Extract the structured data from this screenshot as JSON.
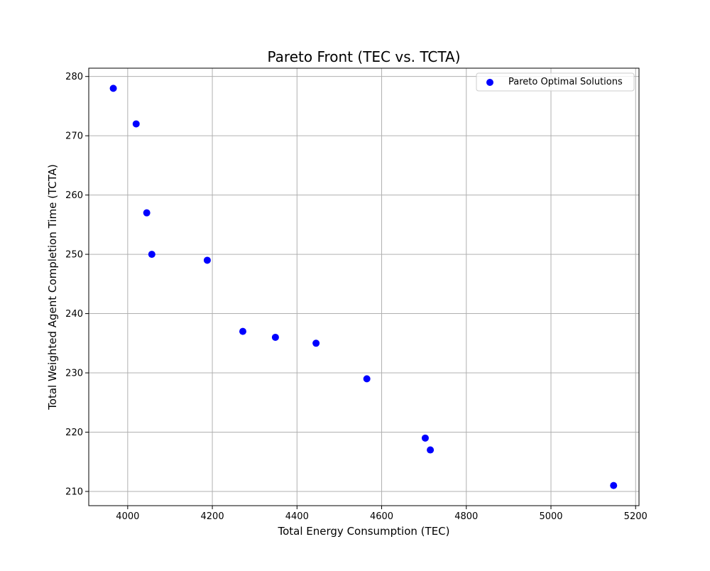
{
  "chart_data": {
    "type": "scatter",
    "title": "Pareto Front (TEC vs. TCTA)",
    "xlabel": "Total Energy Consumption (TEC)",
    "ylabel": "Total Weighted Agent Completion Time (TCTA)",
    "xlim": [
      3908,
      5208
    ],
    "ylim": [
      207.6,
      281.4
    ],
    "xticks": [
      4000,
      4200,
      4400,
      4600,
      4800,
      5000,
      5200
    ],
    "yticks": [
      210,
      220,
      230,
      240,
      250,
      260,
      270,
      280
    ],
    "grid": true,
    "legend_position": "top-right",
    "series": [
      {
        "name": "Pareto Optimal Solutions",
        "color": "#0000ff",
        "x": [
          3966,
          4020,
          4045,
          4057,
          4188,
          4272,
          4349,
          4445,
          4565,
          4703,
          4715,
          5148
        ],
        "y": [
          278,
          272,
          257,
          250,
          249,
          237,
          236,
          235,
          229,
          219,
          217,
          211
        ]
      }
    ]
  }
}
